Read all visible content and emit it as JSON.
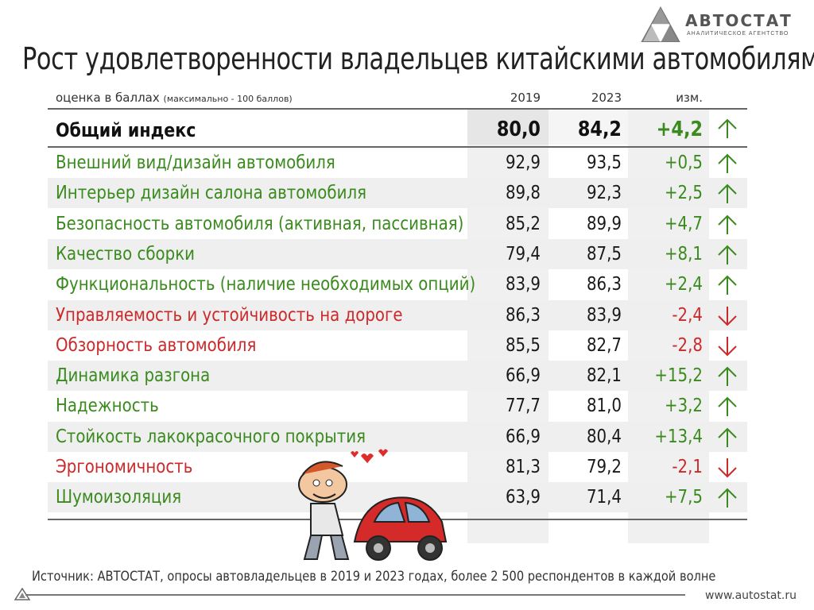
{
  "logo": {
    "name": "АВТОСТАТ",
    "subtitle": "АНАЛИТИЧЕСКОЕ АГЕНТСТВО"
  },
  "title": "Рост удовлетворенности владельцев китайскими автомобилями",
  "header": {
    "label": "оценка в баллах",
    "label_note": "(максимально - 100 баллов)",
    "col_2019": "2019",
    "col_2023": "2023",
    "col_change": "изм."
  },
  "colors": {
    "green": "#3a8a1e",
    "red": "#cc2a2a",
    "black": "#111111"
  },
  "chart_data": {
    "type": "table",
    "columns": [
      "2019",
      "2023",
      "изм."
    ],
    "overall": {
      "name": "Общий индекс",
      "v2019": "80,0",
      "v2023": "84,2",
      "change": "+4,2",
      "direction": "up"
    },
    "rows": [
      {
        "name": "Внешний вид/дизайн автомобиля",
        "v2019": "92,9",
        "v2023": "93,5",
        "change": "+0,5",
        "direction": "up"
      },
      {
        "name": "Интерьер дизайн салона автомобиля",
        "v2019": "89,8",
        "v2023": "92,3",
        "change": "+2,5",
        "direction": "up"
      },
      {
        "name": "Безопасность автомобиля (активная, пассивная)",
        "v2019": "85,2",
        "v2023": "89,9",
        "change": "+4,7",
        "direction": "up"
      },
      {
        "name": "Качество сборки",
        "v2019": "79,4",
        "v2023": "87,5",
        "change": "+8,1",
        "direction": "up"
      },
      {
        "name": "Функциональность (наличие необходимых опций)",
        "v2019": "83,9",
        "v2023": "86,3",
        "change": "+2,4",
        "direction": "up"
      },
      {
        "name": "Управляемость и устойчивость на дороге",
        "v2019": "86,3",
        "v2023": "83,9",
        "change": "-2,4",
        "direction": "down"
      },
      {
        "name": "Обзорность автомобиля",
        "v2019": "85,5",
        "v2023": "82,7",
        "change": "-2,8",
        "direction": "down"
      },
      {
        "name": "Динамика разгона",
        "v2019": "66,9",
        "v2023": "82,1",
        "change": "+15,2",
        "direction": "up"
      },
      {
        "name": "Надежность",
        "v2019": "77,7",
        "v2023": "81,0",
        "change": "+3,2",
        "direction": "up"
      },
      {
        "name": "Стойкость лакокрасочного покрытия",
        "v2019": "66,9",
        "v2023": "80,4",
        "change": "+13,4",
        "direction": "up"
      },
      {
        "name": "Эргономичность",
        "v2019": "81,3",
        "v2023": "79,2",
        "change": "-2,1",
        "direction": "down"
      },
      {
        "name": "Шумоизоляция",
        "v2019": "63,9",
        "v2023": "71,4",
        "change": "+7,5",
        "direction": "up"
      }
    ]
  },
  "source": "Источник: АВТОСТАТ, опросы автовладельцев в 2019 и 2023 годах, более 2 500 респондентов в каждой волне",
  "url": "www.autostat.ru"
}
